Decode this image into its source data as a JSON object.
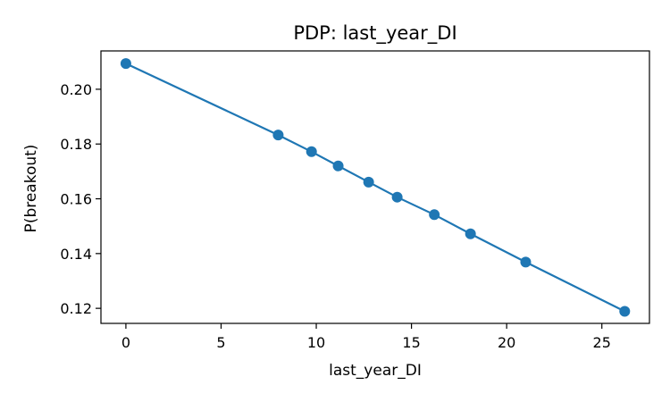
{
  "chart_data": {
    "type": "line",
    "title": "PDP: last_year_DI",
    "xlabel": "last_year_DI",
    "ylabel": "P(breakout)",
    "xlim": [
      -1.31,
      27.5
    ],
    "ylim": [
      0.1145,
      0.214
    ],
    "xticks": [
      0,
      5,
      10,
      15,
      20,
      25
    ],
    "xtick_labels": [
      "0",
      "5",
      "10",
      "15",
      "20",
      "25"
    ],
    "yticks": [
      0.12,
      0.14,
      0.16,
      0.18,
      0.2
    ],
    "ytick_labels": [
      "0.12",
      "0.14",
      "0.16",
      "0.18",
      "0.20"
    ],
    "grid": false,
    "series": [
      {
        "color": "#1f77b4",
        "marker": "circle",
        "x": [
          0,
          8,
          9.75,
          11.15,
          12.75,
          14.25,
          16.2,
          18.1,
          21.0,
          26.2
        ],
        "y": [
          0.2094,
          0.1833,
          0.1772,
          0.172,
          0.1661,
          0.1606,
          0.1542,
          0.1472,
          0.1369,
          0.1189
        ]
      }
    ]
  }
}
